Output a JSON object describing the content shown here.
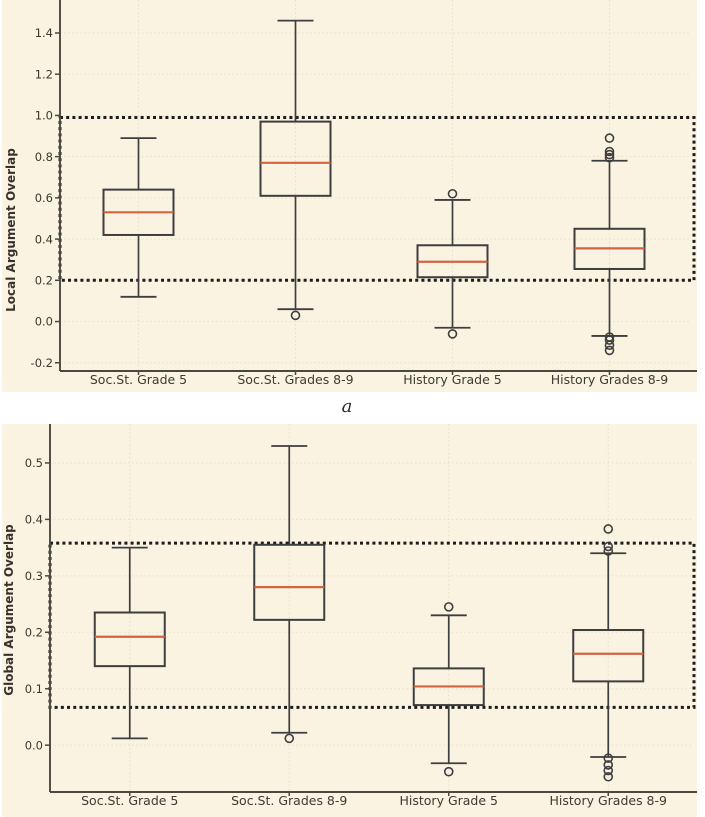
{
  "panel_label": "a",
  "colors": {
    "figure_bg": "#faf3e2",
    "grid": "#e8dfc4",
    "spine": "#4c4840",
    "box_edge": "#3e3e3e",
    "median": "#d2643f",
    "dashed": "#1c1c1c",
    "tick_text": "#3c372e",
    "category_text": "#3f3a32",
    "axis_label_text": "#37332b"
  },
  "chart_data": [
    {
      "type": "boxplot",
      "title": "",
      "xlabel": "",
      "ylabel": "Local Argument Overlap",
      "categories": [
        "Soc.St. Grade 5",
        "Soc.St. Grades 8-9",
        "History Grade 5",
        "History Grades 8-9"
      ],
      "yticks": [
        1.4,
        1.2,
        1.0,
        0.8,
        0.6,
        0.4,
        0.2,
        0.0,
        -0.2
      ],
      "ylim": [
        -0.24,
        1.56
      ],
      "grid": true,
      "legend": false,
      "dashed_band": [
        0.2,
        0.99
      ],
      "series": [
        {
          "name": "Soc.St. Grade 5",
          "whislo": 0.12,
          "q1": 0.42,
          "med": 0.53,
          "q3": 0.64,
          "whishi": 0.89,
          "fliers": []
        },
        {
          "name": "Soc.St. Grades 8-9",
          "whislo": 0.06,
          "q1": 0.61,
          "med": 0.77,
          "q3": 0.97,
          "whishi": 1.46,
          "fliers": [
            0.03
          ]
        },
        {
          "name": "History Grade 5",
          "whislo": -0.03,
          "q1": 0.215,
          "med": 0.29,
          "q3": 0.37,
          "whishi": 0.59,
          "fliers": [
            0.62,
            -0.06
          ]
        },
        {
          "name": "History Grades 8-9",
          "whislo": -0.07,
          "q1": 0.255,
          "med": 0.355,
          "q3": 0.45,
          "whishi": 0.78,
          "fliers": [
            0.89,
            0.825,
            0.81,
            0.795,
            -0.075,
            -0.09,
            -0.115,
            -0.14
          ]
        }
      ]
    },
    {
      "type": "boxplot",
      "title": "",
      "xlabel": "",
      "ylabel": "Global Argument Overlap",
      "categories": [
        "Soc.St. Grade 5",
        "Soc.St. Grades 8-9",
        "History Grade 5",
        "History Grades 8-9"
      ],
      "yticks": [
        0.5,
        0.4,
        0.3,
        0.2,
        0.1,
        0.0
      ],
      "ylim": [
        -0.083,
        0.569
      ],
      "grid": true,
      "legend": false,
      "dashed_band": [
        0.067,
        0.358
      ],
      "series": [
        {
          "name": "Soc.St. Grade 5",
          "whislo": 0.012,
          "q1": 0.14,
          "med": 0.192,
          "q3": 0.235,
          "whishi": 0.35,
          "fliers": []
        },
        {
          "name": "Soc.St. Grades 8-9",
          "whislo": 0.022,
          "q1": 0.222,
          "med": 0.28,
          "q3": 0.355,
          "whishi": 0.53,
          "fliers": [
            0.012
          ]
        },
        {
          "name": "History Grade 5",
          "whislo": -0.032,
          "q1": 0.071,
          "med": 0.104,
          "q3": 0.136,
          "whishi": 0.23,
          "fliers": [
            0.245,
            -0.047
          ]
        },
        {
          "name": "History Grades 8-9",
          "whislo": -0.021,
          "q1": 0.113,
          "med": 0.162,
          "q3": 0.204,
          "whishi": 0.34,
          "fliers": [
            0.383,
            0.352,
            0.344,
            -0.023,
            -0.035,
            -0.045,
            -0.056
          ]
        }
      ]
    }
  ]
}
